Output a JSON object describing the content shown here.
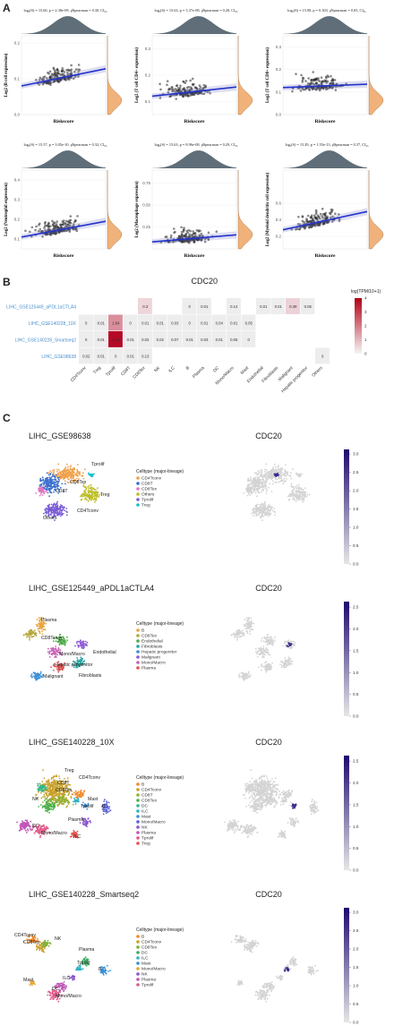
{
  "panels": {
    "a": "A",
    "b": "B",
    "c": "C"
  },
  "section_a": {
    "plots": [
      {
        "stat": "logₑ(S) = 15.60, p = 2.38e-09, ρ̂Spearman = 0.30, CI₉₅",
        "ylabel": "Log2 (B cell expression)",
        "xlabel": "Riskscore",
        "yticks": [
          "0.0",
          "0.1",
          "0.2"
        ],
        "ylim": [
          0,
          0.22
        ],
        "fit": [
          0.08,
          0.128
        ],
        "seed": 1
      },
      {
        "stat": "logₑ(S) = 15.63, p = 5.37e-08, ρ̂Spearman = 0.28, CI₉₅",
        "ylabel": "Log2 (T cell CD4+ expression)",
        "xlabel": "Riskscore",
        "yticks": [
          "0.1",
          "0.2",
          "0.3"
        ],
        "ylim": [
          0.05,
          0.35
        ],
        "fit": [
          0.12,
          0.155
        ],
        "seed": 2
      },
      {
        "stat": "logₑ(S) = 15.90, p = 0.303, ρ̂Spearman = 0.05, CI₉₅",
        "ylabel": "Log2 (T cell CD8+ expression)",
        "xlabel": "Riskscore",
        "yticks": [
          "0.0",
          "0.1",
          "0.2",
          "0.3"
        ],
        "ylim": [
          0,
          0.35
        ],
        "fit": [
          0.12,
          0.135
        ],
        "seed": 3
      },
      {
        "stat": "logₑ(S) = 15.57, p = 3.05e-10, ρ̂Spearman = 0.32, CI₉₅",
        "ylabel": "Log2 (Neutrophil expression)",
        "xlabel": "Riskscore",
        "yticks": [
          "0.1",
          "0.2",
          "0.3",
          "0.4"
        ],
        "ylim": [
          0.05,
          0.45
        ],
        "fit": [
          0.11,
          0.19
        ],
        "seed": 4
      },
      {
        "stat": "logₑ(S) = 15.63, p = 8.96e-08, ρ̂Spearman = 0.29, CI₉₅",
        "ylabel": "Log2 (Macrophage expression)",
        "xlabel": "Riskscore",
        "yticks": [
          "0.25",
          "0.50",
          "0.75"
        ],
        "ylim": [
          0,
          0.9
        ],
        "fit": [
          0.08,
          0.16
        ],
        "seed": 5
      },
      {
        "stat": "logₑ(S) = 15.49, p = 1.55e-13, ρ̂Spearman = 0.37, CI₉₅",
        "ylabel": "Log2 (Myeloid dendritic cell expression)",
        "xlabel": "Riskscore",
        "yticks": [
          "0.2",
          "0.4",
          "0.6"
        ],
        "ylim": [
          0.05,
          1.0
        ],
        "fit": [
          0.28,
          0.5
        ],
        "seed": 6
      }
    ]
  },
  "chart_data": [
    {
      "type": "heatmap",
      "title": "CDC20",
      "legend_title": "log(TPM/10+1)",
      "legend_ticks": [
        "0",
        "1",
        "2",
        "3",
        "4"
      ],
      "rows": [
        "LIHC_GSE125449_aPDL1aCTLA4",
        "LIHC_GSE140228_10X",
        "LIHC_GSE140228_Smartseq2",
        "LIHC_GSE98638"
      ],
      "columns": [
        "CD4Tconv",
        "Treg",
        "Tprolif",
        "CD8T",
        "CD8Tex",
        "NK",
        "ILC",
        "B",
        "Plasma",
        "DC",
        "Mono/Macro",
        "Mast",
        "Endothelial",
        "Fibroblasts",
        "Malignant",
        "Hepatic progenitor",
        "Others"
      ],
      "values": [
        [
          null,
          null,
          null,
          null,
          0.3,
          null,
          null,
          0,
          0.01,
          null,
          0.14,
          null,
          0.01,
          0.01,
          0.39,
          0.05,
          null
        ],
        [
          0,
          0.01,
          1.64,
          0,
          0.01,
          0.01,
          0.03,
          0,
          0.01,
          0.04,
          0.01,
          0.05,
          null,
          null,
          null,
          null,
          null
        ],
        [
          0,
          0.01,
          4.14,
          0.01,
          0.02,
          0.02,
          0.07,
          0.01,
          0.03,
          0.01,
          0.05,
          0,
          null,
          null,
          null,
          null,
          null
        ],
        [
          0.02,
          0.01,
          0,
          0.01,
          0.13,
          null,
          null,
          null,
          null,
          null,
          null,
          null,
          null,
          null,
          null,
          null,
          0
        ]
      ],
      "labels": [
        [
          null,
          null,
          null,
          null,
          "0.3",
          null,
          null,
          "0",
          "0.01",
          null,
          "0.14",
          null,
          "0.01",
          "0.01",
          "0.39",
          "0.05",
          null
        ],
        [
          "0",
          "0.01",
          "1.64",
          "0",
          "0.01",
          "0.01",
          "0.03",
          "0",
          "0.01",
          "0.04",
          "0.01",
          "0.05",
          null,
          null,
          null,
          null,
          null
        ],
        [
          "0",
          "0.01",
          "4.14",
          "0.01",
          "0.02",
          "0.02",
          "0.07",
          "0.01",
          "0.03",
          "0.01",
          "0.05",
          "0",
          null,
          null,
          null,
          null,
          null
        ],
        [
          "0.02",
          "0.01",
          "0",
          "0.01",
          "0.13",
          null,
          null,
          null,
          null,
          null,
          null,
          null,
          null,
          null,
          null,
          null,
          "0"
        ]
      ]
    },
    {
      "type": "scatter",
      "title": "LIHC_GSE98638",
      "legend_title": "Celltype (major-lineage)",
      "categories": [
        "CD4Tconv",
        "CD8T",
        "CD8Tex",
        "Others",
        "Tprolif",
        "Treg"
      ],
      "colors": [
        "#f0a04b",
        "#3b6fcf",
        "#e377c2",
        "#bcbd22",
        "#7a5cd6",
        "#17becf"
      ],
      "cluster_labels": [
        "Tprolif",
        "CD8Tex",
        "CD8T",
        "Treg",
        "CD4Tconv",
        "Others"
      ],
      "feature_title": "CDC20",
      "colorbar_ticks": [
        "0.0",
        "0.5",
        "1.0",
        "1.5",
        "2.0",
        "2.5",
        "3.0"
      ]
    },
    {
      "type": "scatter",
      "title": "LIHC_GSE125449_aPDL1aCTLA4",
      "legend_title": "Celltype (major-lineage)",
      "categories": [
        "B",
        "CD8Tex",
        "Endothelial",
        "Fibroblasts",
        "Hepatic progenitor",
        "Malignant",
        "Mono/Macro",
        "Plasma"
      ],
      "colors": [
        "#e8a33d",
        "#b5a73a",
        "#4fa84a",
        "#27a4a0",
        "#3a8fd6",
        "#8a5ad6",
        "#c763b5",
        "#d9534f"
      ],
      "cluster_labels": [
        "Plasma",
        "CD8Tex",
        "B",
        "Endothelial",
        "Mono/Macro",
        "Hepatic progenitor",
        "Malignant",
        "Fibroblasts"
      ],
      "feature_title": "CDC20",
      "colorbar_ticks": [
        "0.0",
        "0.5",
        "1.0",
        "1.5",
        "2.0",
        "2.5"
      ]
    },
    {
      "type": "scatter",
      "title": "LIHC_GSE140228_10X",
      "legend_title": "Celltype (major-lineage)",
      "categories": [
        "B",
        "CD4Tconv",
        "CD8T",
        "CD8Tex",
        "DC",
        "ILC",
        "Mast",
        "Mono/Macro",
        "NK",
        "Plasma",
        "Tprolif",
        "Treg"
      ],
      "colors": [
        "#f08a2a",
        "#c9a12b",
        "#94b032",
        "#4db04a",
        "#36b68a",
        "#2fb3c4",
        "#3a8fd6",
        "#5a64d4",
        "#8a56cf",
        "#c155b7",
        "#e05a8a",
        "#e64f4f"
      ],
      "cluster_labels": [
        "Treg",
        "CD4Tconv",
        "CD8T",
        "CD8Tex",
        "NK",
        "Mast",
        "Tprolif",
        "B",
        "Plasma",
        "DC",
        "Mono/Macro",
        "ILC"
      ],
      "feature_title": "CDC20",
      "colorbar_ticks": [
        "0.0",
        "0.5",
        "1.0",
        "1.5",
        "2.0",
        "2.5"
      ]
    },
    {
      "type": "scatter",
      "title": "LIHC_GSE140228_Smartseq2",
      "legend_title": "Celltype (major-lineage)",
      "categories": [
        "B",
        "CD4Tconv",
        "CD8Tex",
        "DC",
        "ILC",
        "Mast",
        "Mono/Macro",
        "NK",
        "Plasma",
        "Tprolif"
      ],
      "colors": [
        "#f08a2a",
        "#c9a12b",
        "#7fb035",
        "#3aae5f",
        "#2fb3c4",
        "#3a8fd6",
        "#e6a53a",
        "#8a56cf",
        "#c155b7",
        "#e05a8a"
      ],
      "cluster_labels": [
        "CD4Tconv",
        "CD8Tex",
        "NK",
        "Plasma",
        "Tprolif",
        "B",
        "Mast",
        "ILC",
        "DC",
        "Mono/Macro"
      ],
      "feature_title": "CDC20",
      "colorbar_ticks": [
        "0.0",
        "0.5",
        "1.0",
        "1.5",
        "2.0",
        "2.5",
        "3.0"
      ]
    }
  ]
}
